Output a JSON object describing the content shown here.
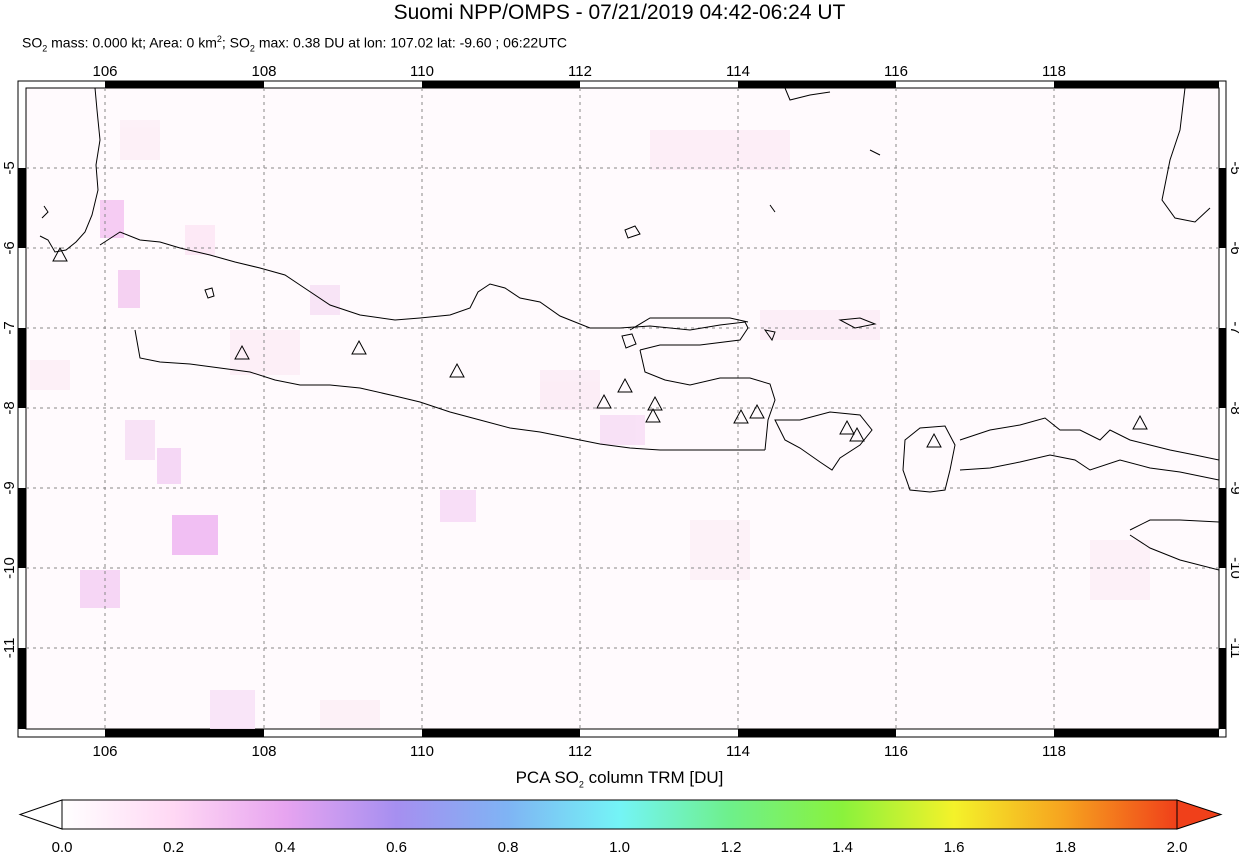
{
  "header": {
    "title": "Suomi NPP/OMPS - 07/21/2019 04:42-06:24 UT",
    "stats": {
      "so2_mass_label": "SO",
      "so2_mass_rest": " mass: 0.000 kt; Area: 0 km",
      "area_rest": "; SO",
      "max_rest": " max: 0.38 DU at lon: 107.02 lat: -9.60 ; 06:22UTC",
      "sub2": "2",
      "sup2": "2"
    }
  },
  "map": {
    "lon_range": [
      105,
      120
    ],
    "lat_range": [
      -12.1,
      -3.9
    ],
    "lon_ticks": [
      "106",
      "108",
      "110",
      "112",
      "114",
      "116",
      "118"
    ],
    "lat_ticks": [
      "-5",
      "-6",
      "-7",
      "-8",
      "-9",
      "-10",
      "-11"
    ],
    "volcano_marker": "triangle-outline"
  },
  "colorbar": {
    "title_pre": "PCA SO",
    "title_sub": "2",
    "title_post": " column TRM [DU]",
    "tick_labels": [
      "0.0",
      "0.2",
      "0.4",
      "0.6",
      "0.8",
      "1.0",
      "1.2",
      "1.4",
      "1.6",
      "1.8",
      "2.0"
    ],
    "range": [
      0,
      2
    ],
    "colors": [
      "#ffffff",
      "#ffd8f4",
      "#e7a4f0",
      "#a68ff0",
      "#7fb4f4",
      "#74f4f6",
      "#6ef08a",
      "#8af23c",
      "#f4f22a",
      "#f6a21f",
      "#f0401a"
    ]
  }
}
